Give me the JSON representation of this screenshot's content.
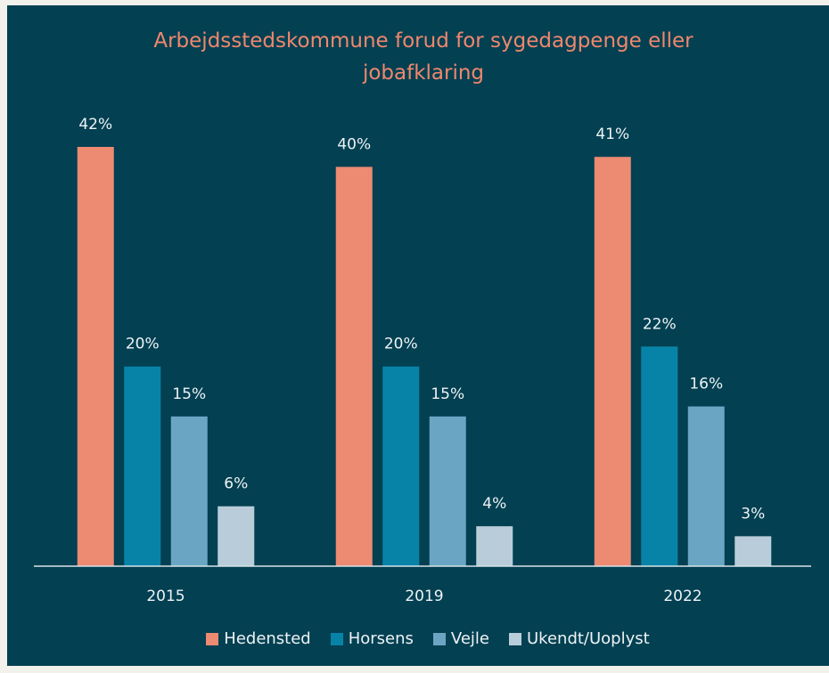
{
  "chart_data": {
    "type": "bar",
    "title": "Arbejdsstedskommune forud for sygedagpenge eller jobafklaring",
    "categories": [
      "2015",
      "2019",
      "2022"
    ],
    "series": [
      {
        "name": "Hedensted",
        "color": "#ec8a72",
        "values": [
          42,
          40,
          41
        ],
        "value_labels": [
          "42%",
          "40%",
          "41%"
        ]
      },
      {
        "name": "Horsens",
        "color": "#0883a8",
        "values": [
          20,
          20,
          22
        ],
        "value_labels": [
          "20%",
          "20%",
          "22%"
        ]
      },
      {
        "name": "Vejle",
        "color": "#6aa6c4",
        "values": [
          15,
          15,
          16
        ],
        "value_labels": [
          "15%",
          "15%",
          "16%"
        ]
      },
      {
        "name": "Ukendt/Uoplyst",
        "color": "#b8cdd9",
        "values": [
          6,
          4,
          3
        ],
        "value_labels": [
          "6%",
          "4%",
          "3%"
        ]
      }
    ],
    "ylim": [
      0,
      42
    ],
    "legend": "bottom"
  }
}
